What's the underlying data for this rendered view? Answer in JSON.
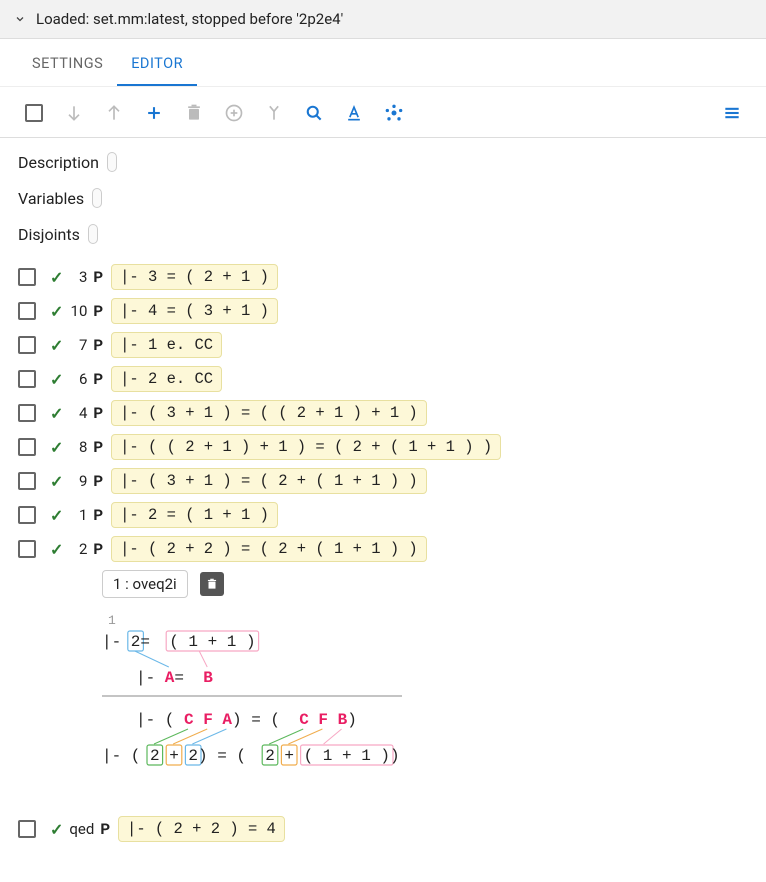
{
  "header": {
    "loaded_text": "Loaded: set.mm:latest, stopped before '2p2e4'"
  },
  "tabs": {
    "settings": "SETTINGS",
    "editor": "EDITOR",
    "active": "editor"
  },
  "toolbar": {
    "icons": [
      "checkbox",
      "arrow-down",
      "arrow-up",
      "plus",
      "trash",
      "circle-plus",
      "merge",
      "search",
      "text-format",
      "graph",
      "menu"
    ]
  },
  "meta": {
    "description_label": "Description",
    "variables_label": "Variables",
    "disjoints_label": "Disjoints"
  },
  "steps": [
    {
      "num": "3",
      "label": "P",
      "expr": "|- 3 = ( 2 + 1 )"
    },
    {
      "num": "10",
      "label": "P",
      "expr": "|- 4 = ( 3 + 1 )"
    },
    {
      "num": "7",
      "label": "P",
      "expr": "|- 1 e. CC"
    },
    {
      "num": "6",
      "label": "P",
      "expr": "|- 2 e. CC"
    },
    {
      "num": "4",
      "label": "P",
      "expr": "|- ( 3 + 1 ) = ( ( 2 + 1 ) + 1 )"
    },
    {
      "num": "8",
      "label": "P",
      "expr": "|- ( ( 2 + 1 ) + 1 ) = ( 2 + ( 1 + 1 ) )"
    },
    {
      "num": "9",
      "label": "P",
      "expr": "|- ( 3 + 1 ) = ( 2 + ( 1 + 1 ) )"
    },
    {
      "num": "1",
      "label": "P",
      "expr": "|- 2 = ( 1 + 1 )"
    },
    {
      "num": "2",
      "label": "P",
      "expr": "|- ( 2 + 2 ) = ( 2 + ( 1 + 1 ) )"
    }
  ],
  "qed": {
    "num": "qed",
    "label": "P",
    "expr": "|- ( 2 + 2 ) = 4"
  },
  "justification": {
    "text": "1 : oveq2i"
  },
  "proof_tree": {
    "ref_label": "1",
    "line1_prefix": "|- ",
    "line1_A": "2",
    "line1_eq": " = ",
    "line1_B": "( 1 + 1 )",
    "line2_prefix": "|- ",
    "line2_A": "A",
    "line2_eq": " = ",
    "line2_B": "B",
    "line3_prefix": "|- ( ",
    "line3_C1": "C",
    "line3_F1": "F",
    "line3_A1": "A",
    "line3_mid": " ) = ( ",
    "line3_C2": "C",
    "line3_F2": "F",
    "line3_B2": "B",
    "line3_suffix": " )",
    "line4_prefix": "|- ( ",
    "line4_C1": "2",
    "line4_F1": "+",
    "line4_A1": "2",
    "line4_mid": " ) = ( ",
    "line4_C2": "2",
    "line4_F2": "+",
    "line4_B2": "( 1 + 1 )",
    "line4_suffix": " )",
    "colors": {
      "A_box": "#6bb8e8",
      "B_box": "#f7a8c4",
      "C_box": "#5cb85c",
      "F_box": "#f0ad4e",
      "var_text": "#e91e63"
    }
  }
}
